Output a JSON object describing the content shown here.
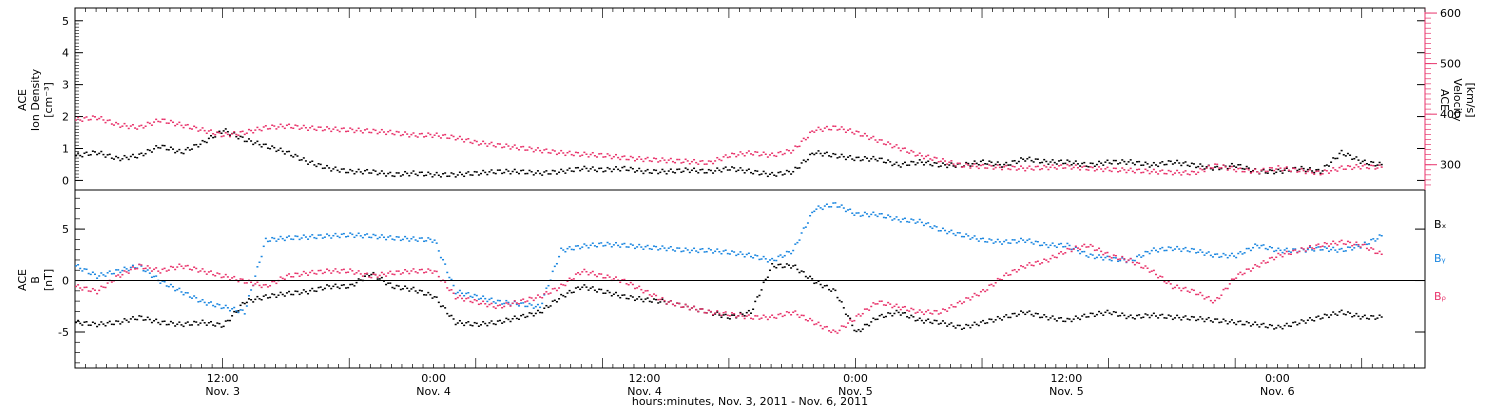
{
  "colors": {
    "black": "#000000",
    "blue": "#1a86e0",
    "pink": "#e8336b",
    "white": "#ffffff"
  },
  "chart_data": [
    {
      "type": "scatter",
      "panel": "top",
      "left_axis": {
        "label_lines": [
          "ACE",
          "Ion Density",
          "[cm⁻³]"
        ],
        "range": [
          -0.3,
          5.4
        ],
        "ticks": [
          "0",
          "1",
          "2",
          "3",
          "4",
          "5"
        ]
      },
      "right_axis": {
        "label_lines": [
          "ACE",
          "Velocity",
          "[km/s]"
        ],
        "range": [
          250,
          610
        ],
        "ticks": [
          "300",
          "400",
          "500",
          "600"
        ]
      },
      "x_range_hours": [
        0,
        128
      ],
      "series": [
        {
          "axis": "left",
          "color_key": "black",
          "x": [
            0,
            2,
            4,
            6,
            8,
            10,
            12,
            14,
            16,
            18,
            20,
            22,
            24,
            26,
            28,
            30,
            32,
            34,
            36,
            38,
            40,
            42,
            44,
            46,
            48,
            50,
            52,
            54,
            56,
            58,
            60,
            62,
            64,
            66,
            68,
            70,
            72,
            74,
            76,
            78,
            80,
            82,
            84,
            86,
            88,
            90,
            92,
            94,
            96,
            98,
            100,
            102,
            104,
            106,
            108,
            110,
            112,
            114,
            116,
            118,
            120,
            122,
            124
          ],
          "y": [
            0.8,
            0.9,
            0.7,
            0.8,
            1.1,
            0.9,
            1.2,
            1.6,
            1.3,
            1.1,
            0.9,
            0.6,
            0.4,
            0.3,
            0.3,
            0.2,
            0.25,
            0.2,
            0.2,
            0.25,
            0.3,
            0.3,
            0.25,
            0.3,
            0.4,
            0.35,
            0.4,
            0.3,
            0.3,
            0.35,
            0.3,
            0.4,
            0.3,
            0.2,
            0.3,
            0.9,
            0.8,
            0.7,
            0.7,
            0.5,
            0.6,
            0.5,
            0.5,
            0.6,
            0.5,
            0.7,
            0.6,
            0.6,
            0.5,
            0.6,
            0.6,
            0.5,
            0.6,
            0.5,
            0.4,
            0.5,
            0.3,
            0.3,
            0.4,
            0.3,
            0.9,
            0.6,
            0.5
          ]
        },
        {
          "axis": "right",
          "color_key": "pink",
          "x": [
            0,
            2,
            4,
            6,
            8,
            10,
            12,
            14,
            16,
            18,
            20,
            22,
            24,
            26,
            28,
            30,
            32,
            34,
            36,
            38,
            40,
            42,
            44,
            46,
            48,
            50,
            52,
            54,
            56,
            58,
            60,
            62,
            64,
            66,
            68,
            70,
            72,
            74,
            76,
            78,
            80,
            82,
            84,
            86,
            88,
            90,
            92,
            94,
            96,
            98,
            100,
            102,
            104,
            106,
            108,
            110,
            112,
            114,
            116,
            118,
            120,
            122,
            124
          ],
          "y": [
            390,
            395,
            380,
            375,
            390,
            380,
            370,
            360,
            365,
            375,
            378,
            374,
            372,
            370,
            368,
            365,
            360,
            360,
            355,
            345,
            340,
            335,
            330,
            325,
            322,
            320,
            315,
            312,
            310,
            308,
            305,
            320,
            325,
            320,
            330,
            370,
            375,
            365,
            350,
            335,
            320,
            310,
            300,
            298,
            296,
            294,
            296,
            298,
            294,
            292,
            290,
            288,
            286,
            285,
            300,
            292,
            288,
            295,
            290,
            285,
            295,
            298,
            296
          ]
        }
      ]
    },
    {
      "type": "scatter",
      "panel": "bottom",
      "left_axis": {
        "label_lines": [
          "ACE",
          "B",
          "[nT]"
        ],
        "range": [
          -8.5,
          8.8
        ],
        "ticks": [
          "-5",
          "0",
          "5"
        ]
      },
      "x_range_hours": [
        0,
        128
      ],
      "x_ticks": [
        {
          "hour": 14,
          "time": "12:00",
          "day": "Nov. 3"
        },
        {
          "hour": 34,
          "time": "0:00",
          "day": "Nov. 4"
        },
        {
          "hour": 54,
          "time": "12:00",
          "day": "Nov. 4"
        },
        {
          "hour": 74,
          "time": "0:00",
          "day": "Nov. 5"
        },
        {
          "hour": 94,
          "time": "12:00",
          "day": "Nov. 5"
        },
        {
          "hour": 114,
          "time": "0:00",
          "day": "Nov. 6"
        }
      ],
      "series": [
        {
          "name": "Bₓ",
          "color_key": "black",
          "x": [
            0,
            2,
            4,
            6,
            8,
            10,
            12,
            14,
            16,
            18,
            20,
            22,
            24,
            26,
            28,
            30,
            32,
            34,
            36,
            38,
            40,
            42,
            44,
            46,
            48,
            50,
            52,
            54,
            56,
            58,
            60,
            62,
            64,
            66,
            68,
            70,
            72,
            74,
            76,
            78,
            80,
            82,
            84,
            86,
            88,
            90,
            92,
            94,
            96,
            98,
            100,
            102,
            104,
            106,
            108,
            110,
            112,
            114,
            116,
            118,
            120,
            122,
            124
          ],
          "y": [
            -4.0,
            -4.2,
            -4.0,
            -3.5,
            -4.0,
            -4.2,
            -4.0,
            -4.3,
            -2.0,
            -1.5,
            -1.2,
            -1.0,
            -0.5,
            -0.5,
            0.8,
            -0.5,
            -0.8,
            -1.5,
            -4.0,
            -4.2,
            -4.0,
            -3.5,
            -3.0,
            -1.5,
            -0.5,
            -1.0,
            -1.5,
            -1.8,
            -2.0,
            -2.5,
            -3.0,
            -3.5,
            -3.0,
            1.5,
            1.5,
            0.0,
            -1.0,
            -5.0,
            -3.5,
            -3.0,
            -3.8,
            -4.0,
            -4.5,
            -4.0,
            -3.5,
            -3.0,
            -3.5,
            -3.8,
            -3.3,
            -3.0,
            -3.5,
            -3.3,
            -3.5,
            -3.6,
            -3.8,
            -4.0,
            -4.2,
            -4.5,
            -4.0,
            -3.5,
            -3.0,
            -3.5,
            -3.5
          ]
        },
        {
          "name": "Bᵧ",
          "color_key": "blue",
          "x": [
            0,
            2,
            4,
            6,
            8,
            10,
            12,
            14,
            16,
            18,
            20,
            22,
            24,
            26,
            28,
            30,
            32,
            34,
            36,
            38,
            40,
            42,
            44,
            46,
            48,
            50,
            52,
            54,
            56,
            58,
            60,
            62,
            64,
            66,
            68,
            70,
            72,
            74,
            76,
            78,
            80,
            82,
            84,
            86,
            88,
            90,
            92,
            94,
            96,
            98,
            100,
            102,
            104,
            106,
            108,
            110,
            112,
            114,
            116,
            118,
            120,
            122,
            124
          ],
          "y": [
            1.5,
            0.5,
            1.0,
            1.5,
            0.0,
            -1.0,
            -2.0,
            -2.5,
            -3.0,
            4.0,
            4.2,
            4.3,
            4.4,
            4.5,
            4.4,
            4.2,
            4.1,
            4.0,
            -1.0,
            -1.5,
            -2.0,
            -2.2,
            -2.5,
            3.0,
            3.4,
            3.6,
            3.5,
            3.3,
            3.2,
            3.0,
            3.0,
            2.8,
            2.5,
            2.0,
            3.0,
            7.0,
            7.5,
            6.5,
            6.5,
            6.0,
            5.8,
            5.0,
            4.5,
            4.0,
            3.8,
            4.0,
            3.5,
            3.5,
            2.5,
            2.2,
            2.0,
            3.0,
            3.2,
            3.0,
            2.5,
            2.5,
            3.5,
            3.0,
            3.0,
            3.2,
            3.0,
            3.5,
            4.5
          ]
        },
        {
          "name": "Bᵨ",
          "color_key": "pink",
          "x": [
            0,
            2,
            4,
            6,
            8,
            10,
            12,
            14,
            16,
            18,
            20,
            22,
            24,
            26,
            28,
            30,
            32,
            34,
            36,
            38,
            40,
            42,
            44,
            46,
            48,
            50,
            52,
            54,
            56,
            58,
            60,
            62,
            64,
            66,
            68,
            70,
            72,
            74,
            76,
            78,
            80,
            82,
            84,
            86,
            88,
            90,
            92,
            94,
            96,
            98,
            100,
            102,
            104,
            106,
            108,
            110,
            112,
            114,
            116,
            118,
            120,
            122,
            124
          ],
          "y": [
            -0.5,
            -1.0,
            0.5,
            1.5,
            1.0,
            1.5,
            1.0,
            0.5,
            0.0,
            -0.5,
            0.5,
            0.8,
            1.0,
            1.0,
            0.5,
            0.8,
            1.0,
            1.0,
            -1.5,
            -2.0,
            -2.5,
            -2.0,
            -1.5,
            -0.5,
            1.0,
            0.5,
            0.0,
            -1.0,
            -2.0,
            -2.5,
            -3.0,
            -3.2,
            -3.5,
            -3.5,
            -3.0,
            -4.0,
            -5.0,
            -3.5,
            -2.0,
            -2.5,
            -3.0,
            -3.0,
            -2.0,
            -1.0,
            0.5,
            1.5,
            2.0,
            3.0,
            3.5,
            2.5,
            2.0,
            1.0,
            -0.5,
            -1.0,
            -2.0,
            0.5,
            1.5,
            2.5,
            3.0,
            3.5,
            3.8,
            3.5,
            2.5
          ]
        }
      ]
    }
  ],
  "x_axis_title": "hours:minutes, Nov.  3, 2011 - Nov.  6, 2011"
}
